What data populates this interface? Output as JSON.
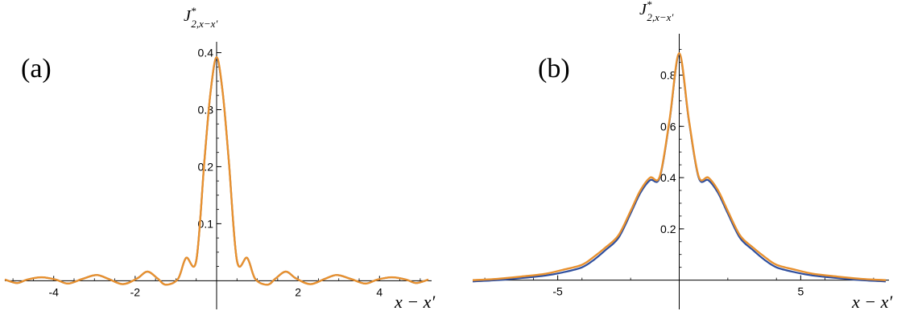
{
  "figure": {
    "panel_a_tag": "(a)",
    "panel_b_tag": "(b)"
  },
  "chart_data": [
    {
      "panel": "(a)",
      "type": "line",
      "xlabel": "x − x′",
      "ylabel": "J*2,x−x′",
      "ylabel_parts": {
        "base": "J",
        "sup": "*",
        "sub": "2,x−x′"
      },
      "xlim": [
        -5.2,
        5.2
      ],
      "ylim": [
        -0.008,
        0.405
      ],
      "xticks": [
        -4,
        -2,
        2,
        4
      ],
      "xtick_labels": [
        "-4",
        "-2",
        "2",
        "4"
      ],
      "yticks": [
        0.1,
        0.2,
        0.3,
        0.4
      ],
      "ytick_labels": [
        "0.1",
        "0.2",
        "0.3",
        "0.4"
      ],
      "series": [
        {
          "color": "#2f4f9e",
          "x": [
            -5.2,
            -4.9,
            -4.65,
            -4.3,
            -3.95,
            -3.65,
            -3.3,
            -2.95,
            -2.65,
            -2.3,
            -1.95,
            -1.7,
            -1.45,
            -1.25,
            -0.95,
            -0.75,
            -0.5,
            -0.3,
            -0.15,
            0,
            0.15,
            0.3,
            0.5,
            0.75,
            0.95,
            1.25,
            1.45,
            1.7,
            1.95,
            2.3,
            2.65,
            2.95,
            3.3,
            3.65,
            3.95,
            4.3,
            4.65,
            4.9,
            5.2
          ],
          "y": [
            0.002,
            -0.004,
            0.002,
            0.006,
            0.002,
            -0.005,
            0.003,
            0.01,
            0.003,
            -0.006,
            0.004,
            0.016,
            0.004,
            -0.007,
            0.003,
            0.04,
            0.035,
            0.21,
            0.33,
            0.39,
            0.33,
            0.21,
            0.035,
            0.04,
            0.003,
            -0.007,
            0.004,
            0.016,
            0.004,
            -0.006,
            0.003,
            0.01,
            0.003,
            -0.005,
            0.002,
            0.006,
            0.002,
            -0.004,
            0.002
          ]
        },
        {
          "color": "#e8912f",
          "x": [
            -5.2,
            -4.9,
            -4.65,
            -4.3,
            -3.95,
            -3.65,
            -3.3,
            -2.95,
            -2.65,
            -2.3,
            -1.95,
            -1.7,
            -1.45,
            -1.25,
            -0.95,
            -0.75,
            -0.5,
            -0.3,
            -0.15,
            0,
            0.15,
            0.3,
            0.5,
            0.75,
            0.95,
            1.25,
            1.45,
            1.7,
            1.95,
            2.3,
            2.65,
            2.95,
            3.3,
            3.65,
            3.95,
            4.3,
            4.65,
            4.9,
            5.2
          ],
          "y": [
            0.002,
            -0.004,
            0.002,
            0.006,
            0.002,
            -0.005,
            0.003,
            0.01,
            0.003,
            -0.006,
            0.004,
            0.016,
            0.004,
            -0.007,
            0.003,
            0.04,
            0.035,
            0.21,
            0.33,
            0.392,
            0.33,
            0.21,
            0.035,
            0.04,
            0.003,
            -0.007,
            0.004,
            0.016,
            0.004,
            -0.006,
            0.003,
            0.01,
            0.003,
            -0.005,
            0.002,
            0.006,
            0.002,
            -0.004,
            0.002
          ]
        }
      ]
    },
    {
      "panel": "(b)",
      "type": "line",
      "xlabel": "x − x′",
      "ylabel": "J*2,x−x′",
      "ylabel_parts": {
        "base": "J",
        "sup": "*",
        "sub": "2,x−x′"
      },
      "xlim": [
        -8.5,
        8.5
      ],
      "ylim": [
        -0.02,
        0.93
      ],
      "xticks": [
        -5,
        5
      ],
      "xtick_labels": [
        "-5",
        "5"
      ],
      "yticks": [
        0.2,
        0.4,
        0.6,
        0.8
      ],
      "ytick_labels": [
        "0.2",
        "0.4",
        "0.6",
        "0.8"
      ],
      "series": [
        {
          "color": "#2f4f9e",
          "x": [
            -8.5,
            -7.5,
            -6.5,
            -5.5,
            -4.8,
            -4.0,
            -3.5,
            -3.0,
            -2.5,
            -2.0,
            -1.6,
            -1.2,
            -0.8,
            -0.4,
            0,
            0.4,
            0.8,
            1.2,
            1.6,
            2.0,
            2.5,
            3.0,
            3.5,
            4.0,
            4.8,
            5.5,
            6.5,
            7.5,
            8.5
          ],
          "y": [
            -0.005,
            0.0,
            0.008,
            0.018,
            0.03,
            0.05,
            0.08,
            0.12,
            0.165,
            0.26,
            0.34,
            0.39,
            0.4,
            0.62,
            0.88,
            0.62,
            0.4,
            0.39,
            0.34,
            0.26,
            0.165,
            0.12,
            0.08,
            0.05,
            0.03,
            0.018,
            0.008,
            0.0,
            -0.005
          ]
        },
        {
          "color": "#e8912f",
          "x": [
            -8.5,
            -7.5,
            -6.5,
            -5.5,
            -4.8,
            -4.0,
            -3.5,
            -3.0,
            -2.5,
            -2.0,
            -1.6,
            -1.2,
            -0.8,
            -0.4,
            0,
            0.4,
            0.8,
            1.2,
            1.6,
            2.0,
            2.5,
            3.0,
            3.5,
            4.0,
            4.8,
            5.5,
            6.5,
            7.5,
            8.5
          ],
          "y": [
            0.0,
            0.005,
            0.014,
            0.025,
            0.04,
            0.06,
            0.092,
            0.13,
            0.175,
            0.27,
            0.35,
            0.4,
            0.405,
            0.625,
            0.885,
            0.625,
            0.405,
            0.4,
            0.35,
            0.27,
            0.175,
            0.13,
            0.092,
            0.06,
            0.04,
            0.025,
            0.014,
            0.005,
            0.0
          ]
        }
      ]
    }
  ]
}
